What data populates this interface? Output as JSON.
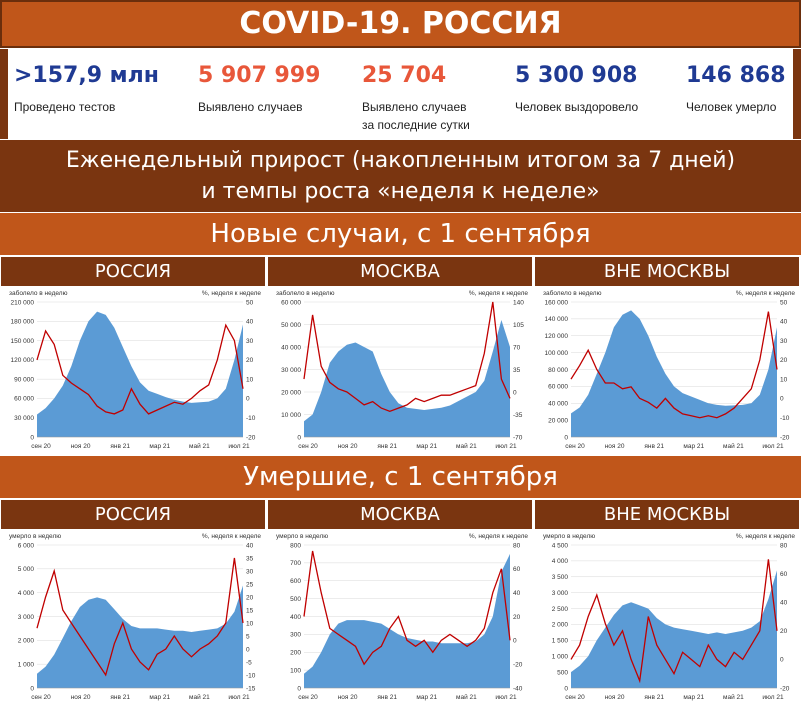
{
  "header": {
    "title": "COVID-19. РОССИЯ"
  },
  "stats": [
    {
      "value": ">157,9 млн",
      "label": "Проведено тестов",
      "label2": "",
      "color": "#1f3a93"
    },
    {
      "value": "5 907 999",
      "label": "Выявлено случаев",
      "label2": "",
      "color": "#e8573a"
    },
    {
      "value": "25 704",
      "label": "Выявлено случаев",
      "label2": "за последние сутки",
      "color": "#e8573a"
    },
    {
      "value": "5 300 908",
      "label": "Человек выздоровело",
      "label2": "",
      "color": "#1f3a93"
    },
    {
      "value": "146 868",
      "label": "Человек умерло",
      "label2": "",
      "color": "#1f3a93"
    }
  ],
  "subtitle": {
    "line1": "Еженедельный прирост (накопленным итогом за 7 дней)",
    "line2": "и темпы роста «неделя к неделе»"
  },
  "sections": {
    "cases_title": "Новые случаи, с 1 сентября",
    "deaths_title": "Умершие, с 1 сентября"
  },
  "regions": [
    "РОССИЯ",
    "МОСКВА",
    "ВНЕ МОСКВЫ"
  ],
  "colors": {
    "area": "#5b9bd5",
    "line": "#c00000",
    "banner": "#c0561a",
    "dark": "#7a3510"
  },
  "chart_data": [
    {
      "type": "area",
      "region": "РОССИЯ",
      "group": "cases",
      "y_label": "заболело в неделю",
      "y2_label": "%, неделя к неделе",
      "ylim": [
        0,
        210000
      ],
      "y2lim": [
        -20,
        50
      ],
      "y_ticks": [
        "0",
        "30 000",
        "60 000",
        "90 000",
        "120 000",
        "150 000",
        "180 000",
        "210 000"
      ],
      "y2_ticks": [
        "-20",
        "-10",
        "0",
        "10",
        "20",
        "30",
        "40",
        "50"
      ],
      "x_ticks": [
        "сен 20",
        "ноя 20",
        "янв 21",
        "мар 21",
        "май 21",
        "июл 21"
      ],
      "area_values": [
        35000,
        45000,
        60000,
        80000,
        110000,
        150000,
        180000,
        195000,
        190000,
        170000,
        140000,
        110000,
        85000,
        72000,
        67000,
        62000,
        58000,
        55000,
        53000,
        54000,
        55000,
        60000,
        75000,
        120000,
        175000
      ],
      "line_values": [
        20,
        35,
        28,
        12,
        8,
        5,
        2,
        -4,
        -7,
        -8,
        -6,
        5,
        -3,
        -8,
        -6,
        -4,
        -2,
        -3,
        0,
        4,
        7,
        20,
        38,
        30,
        5
      ]
    },
    {
      "type": "area",
      "region": "МОСКВА",
      "group": "cases",
      "y_label": "заболело в неделю",
      "y2_label": "%, неделя к неделе",
      "ylim": [
        0,
        60000
      ],
      "y2lim": [
        -70,
        140
      ],
      "y_ticks": [
        "0",
        "10 000",
        "20 000",
        "30 000",
        "40 000",
        "50 000",
        "60 000"
      ],
      "y2_ticks": [
        "-70",
        "-35",
        "0",
        "35",
        "70",
        "105",
        "140"
      ],
      "x_ticks": [
        "сен 20",
        "ноя 20",
        "янв 21",
        "мар 21",
        "май 21",
        "июл 21"
      ],
      "area_values": [
        7000,
        10000,
        20000,
        33000,
        38000,
        41000,
        42000,
        40000,
        38000,
        28000,
        20000,
        15000,
        13000,
        12500,
        12000,
        12500,
        13000,
        14000,
        16000,
        18000,
        20000,
        25000,
        38000,
        52000,
        40000
      ],
      "line_values": [
        20,
        120,
        40,
        15,
        5,
        0,
        -10,
        -20,
        -15,
        -25,
        -30,
        -25,
        -20,
        -10,
        -15,
        -10,
        -5,
        -5,
        0,
        5,
        10,
        60,
        140,
        20,
        -10
      ]
    },
    {
      "type": "area",
      "region": "ВНЕ МОСКВЫ",
      "group": "cases",
      "y_label": "заболело в неделю",
      "y2_label": "%, неделя к неделе",
      "ylim": [
        0,
        160000
      ],
      "y2lim": [
        -20,
        50
      ],
      "y_ticks": [
        "0",
        "20 000",
        "40 000",
        "60 000",
        "80 000",
        "100 000",
        "120 000",
        "140 000",
        "160 000"
      ],
      "y2_ticks": [
        "-20",
        "-10",
        "0",
        "10",
        "20",
        "30",
        "40",
        "50"
      ],
      "x_ticks": [
        "сен 20",
        "ноя 20",
        "янв 21",
        "мар 21",
        "май 21",
        "июл 21"
      ],
      "area_values": [
        28000,
        35000,
        50000,
        75000,
        100000,
        130000,
        145000,
        150000,
        140000,
        120000,
        95000,
        75000,
        60000,
        52000,
        48000,
        44000,
        40000,
        38000,
        37000,
        37500,
        38000,
        40000,
        50000,
        80000,
        130000
      ],
      "line_values": [
        10,
        17,
        25,
        15,
        8,
        8,
        5,
        6,
        0,
        -2,
        -5,
        0,
        -5,
        -8,
        -9,
        -10,
        -9,
        -10,
        -8,
        -5,
        0,
        5,
        20,
        45,
        15
      ]
    },
    {
      "type": "area",
      "region": "РОССИЯ",
      "group": "deaths",
      "y_label": "умерло в неделю",
      "y2_label": "%, неделя к неделе",
      "ylim": [
        0,
        6000
      ],
      "y2lim": [
        -15,
        40
      ],
      "y_ticks": [
        "0",
        "1 000",
        "2 000",
        "3 000",
        "4 000",
        "5 000",
        "6 000"
      ],
      "y2_ticks": [
        "-15",
        "-10",
        "-5",
        "0",
        "5",
        "10",
        "15",
        "20",
        "25",
        "30",
        "35",
        "40"
      ],
      "x_ticks": [
        "сен 20",
        "ноя 20",
        "янв 21",
        "мар 21",
        "май 21",
        "июл 21"
      ],
      "area_values": [
        600,
        900,
        1400,
        2100,
        2800,
        3400,
        3700,
        3800,
        3700,
        3300,
        2900,
        2600,
        2500,
        2500,
        2500,
        2450,
        2400,
        2400,
        2350,
        2400,
        2450,
        2500,
        2700,
        3200,
        4300
      ],
      "line_values": [
        8,
        20,
        30,
        15,
        10,
        5,
        0,
        -5,
        -10,
        2,
        10,
        0,
        -5,
        -8,
        -2,
        0,
        5,
        0,
        -3,
        0,
        2,
        5,
        10,
        35,
        10
      ]
    },
    {
      "type": "area",
      "region": "МОСКВА",
      "group": "deaths",
      "y_label": "умерло в неделю",
      "y2_label": "%, неделя к неделе",
      "ylim": [
        0,
        800
      ],
      "y2lim": [
        -40,
        80
      ],
      "y_ticks": [
        "0",
        "100",
        "200",
        "300",
        "400",
        "500",
        "600",
        "700",
        "800"
      ],
      "y2_ticks": [
        "-40",
        "-20",
        "0",
        "20",
        "40",
        "60",
        "80"
      ],
      "x_ticks": [
        "сен 20",
        "ноя 20",
        "янв 21",
        "мар 21",
        "май 21",
        "июл 21"
      ],
      "area_values": [
        80,
        120,
        200,
        300,
        360,
        380,
        380,
        380,
        370,
        360,
        330,
        300,
        280,
        270,
        260,
        260,
        250,
        250,
        250,
        250,
        260,
        300,
        400,
        650,
        750
      ],
      "line_values": [
        20,
        75,
        40,
        10,
        5,
        0,
        -5,
        -20,
        -10,
        -5,
        10,
        20,
        0,
        -5,
        0,
        -10,
        0,
        5,
        0,
        -5,
        0,
        10,
        40,
        60,
        0
      ]
    },
    {
      "type": "area",
      "region": "ВНЕ МОСКВЫ",
      "group": "deaths",
      "y_label": "умерло в неделю",
      "y2_label": "%, неделя к неделе",
      "ylim": [
        0,
        4500
      ],
      "y2lim": [
        -20,
        80
      ],
      "y_ticks": [
        "0",
        "500",
        "1 000",
        "1 500",
        "2 000",
        "2 500",
        "3 000",
        "3 500",
        "4 000",
        "4 500"
      ],
      "y2_ticks": [
        "-20",
        "0",
        "20",
        "40",
        "60",
        "80"
      ],
      "x_ticks": [
        "сен 20",
        "ноя 20",
        "янв 21",
        "мар 21",
        "май 21",
        "июл 21"
      ],
      "area_values": [
        500,
        700,
        1000,
        1500,
        1900,
        2300,
        2600,
        2700,
        2600,
        2500,
        2200,
        2000,
        1900,
        1850,
        1800,
        1750,
        1700,
        1750,
        1700,
        1750,
        1800,
        1900,
        2100,
        2800,
        3700
      ],
      "line_values": [
        0,
        10,
        30,
        45,
        25,
        10,
        20,
        0,
        -15,
        30,
        10,
        0,
        -10,
        5,
        0,
        -5,
        10,
        0,
        -5,
        5,
        0,
        10,
        20,
        70,
        20
      ]
    }
  ]
}
